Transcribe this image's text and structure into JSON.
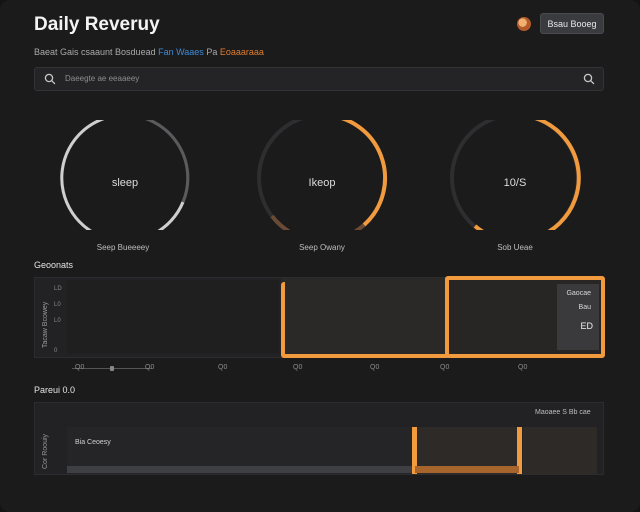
{
  "header": {
    "title": "Daily Reveruy",
    "button_label": "Bsau Booeg"
  },
  "subline": {
    "part1": "Baeat Gais csaaunt Bosduead",
    "part2": "Fan Waaes",
    "part3": "Pa",
    "part4": "Eoaaaraaa"
  },
  "search": {
    "placeholder": "Daeegte ae eeaaeey"
  },
  "gauges": [
    {
      "center_label": "sleep",
      "caption": "",
      "value": 1.0,
      "color": "#c9c9c9"
    },
    {
      "center_label": "Ikeop",
      "caption": "Seep Owany",
      "value": 0.42,
      "color": "#f29a3e"
    },
    {
      "center_label": "10/S",
      "caption": "Sob Ueae",
      "value": 0.67,
      "color": "#f29a3e"
    }
  ],
  "gauge1_caption": "Seep Bueeeey",
  "section1": {
    "label": "Geoonats",
    "axis_label": "Tacaw Bcowey",
    "y_ticks": [
      "LD",
      "L0",
      "L0",
      "0"
    ],
    "x_ticks": [
      "Q0",
      "Q0",
      "Q0",
      "Q0",
      "Q0",
      "Q0",
      "Q0"
    ],
    "card": {
      "line1": "Gaocae",
      "line2": "Bau",
      "value": "ED"
    }
  },
  "section2": {
    "label": "Pareui 0.0",
    "axis_label": "Cor Roouiy",
    "series_label": "Bia Ceoesy",
    "legend": "Maoaee S Bb cae"
  },
  "colors": {
    "accent": "#f29a3e",
    "background": "#1b1b1c",
    "panel": "#222224"
  }
}
